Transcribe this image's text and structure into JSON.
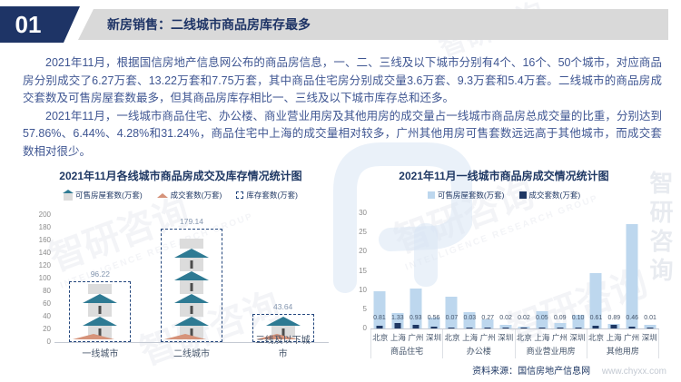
{
  "header": {
    "page_number": "01",
    "title": "新房销售：二线城市商品房库存最多"
  },
  "body": {
    "paragraph1": "2021年11月，根据国信房地产信息网公布的商品房信息，一、二、三线及以下城市分别有4个、16个、50个城市，对应商品房分别成交了6.27万套、13.22万套和7.75万套，其中商品住宅房分别成交量3.6万套、9.3万套和5.4万套。二线城市的商品房成交套数及可售房屋套数最多，但其商品房库存相比一、三线及以下城市库存总和还多。",
    "paragraph2": "2021年11月，一线城市商品住宅、办公楼、商业营业用房及其他用房的成交量占一线城市商品房总成交量的比重，分别达到57.86%、6.44%、4.28%和31.24%，商品住宅中上海的成交量相对较多，广州其他用房可售套数远远高于其他城市，而成交套数相对很少。"
  },
  "footer": {
    "source_label": "资料来源：国信房地产信息网",
    "source_site": "www.chyxx.com"
  },
  "watermark": {
    "text": "智研咨询",
    "subtext": "INTELLIGENCE RESEARCH GROUP"
  },
  "colors": {
    "navy": "#1F3864",
    "header_bar_gray": "#D9D9D9",
    "body_text_blue": "#3F5692",
    "light_blue_bar": "#BDD7EE",
    "navy_bar": "#1F3864",
    "house_body_gray": "#DCDCDC",
    "house_roof_teal": "#2E7A93",
    "sold_marker_orange": "#D6937A"
  },
  "chart_data": [
    {
      "type": "bar",
      "subtype": "pictogram",
      "title": "2021年11月各线城市商品房成交及库存情况统计图",
      "legend": [
        "可售房屋套数(万套)",
        "成交套数(万套)",
        "库存套数(万套)"
      ],
      "legend_position": "top",
      "categories": [
        "一线城市",
        "二线城市",
        "三线及以下城市"
      ],
      "series": [
        {
          "name": "库存套数(万套)",
          "style": "dashed-box",
          "values": [
            96.22,
            179.14,
            43.64
          ],
          "labels": [
            "96.22",
            "179.14",
            "43.64"
          ]
        },
        {
          "name": "可售房屋套数(万套)",
          "style": "house-pictogram",
          "house_counts": [
            2,
            4,
            1
          ],
          "cap_segments": [
            true,
            true,
            false
          ]
        },
        {
          "name": "成交套数(万套)",
          "style": "orange-house-marker",
          "values": [
            6.27,
            13.22,
            7.75
          ]
        }
      ],
      "ylim": [
        0,
        200
      ],
      "yticks": [
        0,
        20,
        40,
        60,
        80,
        100,
        120,
        140,
        160,
        180,
        200
      ],
      "grid": false
    },
    {
      "type": "bar",
      "title": "2021年11月一线城市商品房成交情况统计图",
      "legend": [
        "可售房屋套数(万套)",
        "成交套数(万套)"
      ],
      "legend_position": "top",
      "groups": [
        "商品住宅",
        "办公楼",
        "商业营业用房",
        "其他用房"
      ],
      "categories": [
        "北京",
        "上海",
        "广州",
        "深圳"
      ],
      "series": [
        {
          "name": "可售房屋套数(万套)",
          "color": "#BDD7EE",
          "estimated": true,
          "values": [
            [
              9.6,
              4.1,
              10.4,
              2.9
            ],
            [
              8.3,
              4.3,
              2.3,
              1.0
            ],
            [
              0.5,
              4.6,
              1.4,
              3.6
            ],
            [
              14.5,
              1.3,
              27.2,
              0.9
            ]
          ]
        },
        {
          "name": "成交套数(万套)",
          "color": "#1F3864",
          "values": [
            [
              0.81,
              1.33,
              0.93,
              0.56
            ],
            [
              0.07,
              0.03,
              0.27,
              0.02
            ],
            [
              0.02,
              0.05,
              0.09,
              0.1
            ],
            [
              0.61,
              0.89,
              0.46,
              0.01
            ]
          ],
          "labels": [
            [
              "0.81",
              "1.33",
              "0.93",
              "0.56"
            ],
            [
              "0.07",
              "0.03",
              "0.27",
              "0.02"
            ],
            [
              "0.02",
              "0.05",
              "0.09",
              "0.10"
            ],
            [
              "0.61",
              "0.89",
              "0.46",
              "0.01"
            ]
          ]
        }
      ],
      "ylim": [
        0,
        30
      ],
      "yticks": [
        0,
        5,
        10,
        15,
        20,
        25,
        30
      ],
      "grid": false
    }
  ]
}
